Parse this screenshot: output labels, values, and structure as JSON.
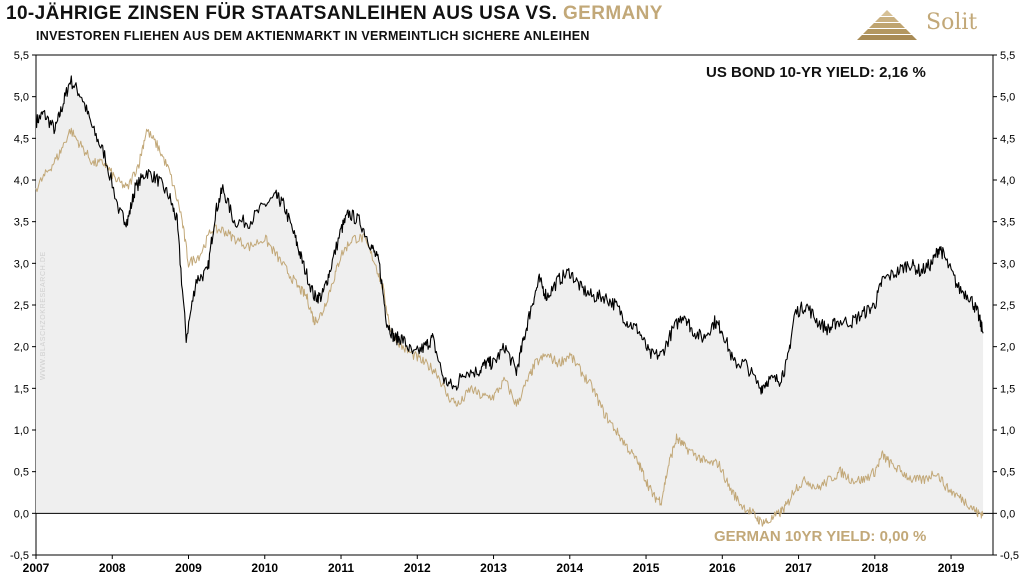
{
  "header": {
    "title_main": "10-JÄHRIGE ZINSEN FÜR STAATSANLEIHEN AUS USA  VS.",
    "title_accent": "GERMANY",
    "subtitle": "INVESTOREN  FLIEHEN  AUS  DEM  AKTIENMARKT IN VERMEINTLICH  SICHERE  ANLEIHEN"
  },
  "brand": {
    "name": "Solit",
    "icon": "pyramid-logo-icon",
    "color": "#c2a878"
  },
  "watermark": "WWW.BLASCHZOKRESEARCH.DE",
  "labels": {
    "us_yield": "US BOND 10-YR YIELD: 2,16 %",
    "de_yield": "GERMAN 10YR  YIELD: 0,00 %"
  },
  "colors": {
    "us": "#000000",
    "de": "#c2a878",
    "fill": "#efefef"
  },
  "chart_data": {
    "type": "line",
    "title": "10-JÄHRIGE ZINSEN FÜR STAATSANLEIHEN AUS USA VS. GERMANY",
    "xlabel": "",
    "ylabel": "",
    "ylim": [
      -0.5,
      5.5
    ],
    "xlim": [
      2007.0,
      2019.55
    ],
    "yticks": [
      "-0,5",
      "0,0",
      "0,5",
      "1,0",
      "1,5",
      "2,0",
      "2,5",
      "3,0",
      "3,5",
      "4,0",
      "4,5",
      "5,0",
      "5,5"
    ],
    "ytick_values": [
      -0.5,
      0,
      0.5,
      1,
      1.5,
      2,
      2.5,
      3,
      3.5,
      4,
      4.5,
      5,
      5.5
    ],
    "xticks": [
      "2007",
      "2008",
      "2009",
      "2010",
      "2011",
      "2012",
      "2013",
      "2014",
      "2015",
      "2016",
      "2017",
      "2018",
      "2019"
    ],
    "xtick_values": [
      2007,
      2008,
      2009,
      2010,
      2011,
      2012,
      2013,
      2014,
      2015,
      2016,
      2017,
      2018,
      2019
    ],
    "series": [
      {
        "name": "US BOND 10-YR YIELD",
        "color": "#000000",
        "x": [
          2007.0,
          2007.1,
          2007.25,
          2007.35,
          2007.45,
          2007.6,
          2007.75,
          2007.9,
          2008.1,
          2008.2,
          2008.3,
          2008.45,
          2008.6,
          2008.75,
          2008.85,
          2008.97,
          2009.1,
          2009.25,
          2009.35,
          2009.45,
          2009.6,
          2009.8,
          2010.0,
          2010.15,
          2010.25,
          2010.4,
          2010.5,
          2010.65,
          2010.75,
          2010.85,
          2011.0,
          2011.1,
          2011.25,
          2011.4,
          2011.5,
          2011.6,
          2011.7,
          2011.8,
          2011.95,
          2012.1,
          2012.2,
          2012.35,
          2012.5,
          2012.6,
          2012.8,
          2012.9,
          2013.0,
          2013.15,
          2013.3,
          2013.4,
          2013.5,
          2013.6,
          2013.7,
          2013.85,
          2014.0,
          2014.15,
          2014.3,
          2014.45,
          2014.6,
          2014.75,
          2014.9,
          2015.05,
          2015.2,
          2015.35,
          2015.5,
          2015.6,
          2015.75,
          2015.9,
          2016.0,
          2016.15,
          2016.3,
          2016.5,
          2016.6,
          2016.75,
          2016.85,
          2016.95,
          2017.1,
          2017.25,
          2017.4,
          2017.5,
          2017.7,
          2017.85,
          2018.0,
          2018.1,
          2018.3,
          2018.45,
          2018.6,
          2018.75,
          2018.85,
          2018.95,
          2019.1,
          2019.25,
          2019.35,
          2019.42
        ],
        "values": [
          4.7,
          4.8,
          4.6,
          4.9,
          5.2,
          5.0,
          4.6,
          4.3,
          3.6,
          3.5,
          3.9,
          4.1,
          4.0,
          3.8,
          3.5,
          2.1,
          2.8,
          2.9,
          3.6,
          3.9,
          3.5,
          3.5,
          3.7,
          3.8,
          3.7,
          3.3,
          3.0,
          2.6,
          2.6,
          2.9,
          3.4,
          3.6,
          3.5,
          3.2,
          3.0,
          2.3,
          2.1,
          2.1,
          1.9,
          2.0,
          2.1,
          1.6,
          1.5,
          1.7,
          1.7,
          1.8,
          1.8,
          2.0,
          1.7,
          2.1,
          2.5,
          2.8,
          2.6,
          2.8,
          2.9,
          2.7,
          2.6,
          2.6,
          2.5,
          2.3,
          2.2,
          1.9,
          1.9,
          2.2,
          2.4,
          2.2,
          2.1,
          2.3,
          2.2,
          1.8,
          1.8,
          1.5,
          1.6,
          1.6,
          1.8,
          2.4,
          2.5,
          2.3,
          2.2,
          2.3,
          2.3,
          2.4,
          2.5,
          2.8,
          2.9,
          3.0,
          2.9,
          3.0,
          3.2,
          3.0,
          2.7,
          2.6,
          2.4,
          2.16
        ]
      },
      {
        "name": "GERMAN 10YR YIELD",
        "color": "#c2a878",
        "x": [
          2007.0,
          2007.15,
          2007.3,
          2007.45,
          2007.6,
          2007.75,
          2007.9,
          2008.05,
          2008.2,
          2008.35,
          2008.45,
          2008.6,
          2008.75,
          2008.9,
          2009.0,
          2009.15,
          2009.3,
          2009.45,
          2009.6,
          2009.8,
          2010.0,
          2010.15,
          2010.3,
          2010.45,
          2010.55,
          2010.65,
          2010.75,
          2010.9,
          2011.0,
          2011.15,
          2011.3,
          2011.45,
          2011.55,
          2011.65,
          2011.8,
          2011.95,
          2012.1,
          2012.25,
          2012.4,
          2012.55,
          2012.7,
          2012.85,
          2013.0,
          2013.15,
          2013.3,
          2013.45,
          2013.55,
          2013.7,
          2013.85,
          2014.0,
          2014.15,
          2014.3,
          2014.45,
          2014.6,
          2014.75,
          2014.9,
          2015.0,
          2015.1,
          2015.2,
          2015.3,
          2015.4,
          2015.5,
          2015.65,
          2015.8,
          2015.95,
          2016.1,
          2016.25,
          2016.4,
          2016.5,
          2016.6,
          2016.75,
          2016.85,
          2016.95,
          2017.1,
          2017.25,
          2017.4,
          2017.55,
          2017.7,
          2017.85,
          2018.0,
          2018.1,
          2018.2,
          2018.35,
          2018.5,
          2018.65,
          2018.8,
          2018.95,
          2019.1,
          2019.25,
          2019.35,
          2019.42
        ],
        "values": [
          3.9,
          4.1,
          4.3,
          4.6,
          4.4,
          4.2,
          4.2,
          4.0,
          3.9,
          4.2,
          4.6,
          4.4,
          4.1,
          3.6,
          3.0,
          3.1,
          3.4,
          3.4,
          3.3,
          3.2,
          3.3,
          3.1,
          2.9,
          2.7,
          2.6,
          2.3,
          2.4,
          2.8,
          3.1,
          3.3,
          3.3,
          3.0,
          2.7,
          2.2,
          2.0,
          1.9,
          1.8,
          1.7,
          1.4,
          1.3,
          1.5,
          1.4,
          1.4,
          1.6,
          1.3,
          1.6,
          1.8,
          1.9,
          1.8,
          1.9,
          1.7,
          1.5,
          1.2,
          1.0,
          0.8,
          0.6,
          0.4,
          0.2,
          0.15,
          0.6,
          0.9,
          0.8,
          0.7,
          0.6,
          0.6,
          0.3,
          0.1,
          0.0,
          -0.1,
          -0.1,
          0.0,
          0.1,
          0.3,
          0.4,
          0.3,
          0.4,
          0.5,
          0.4,
          0.4,
          0.5,
          0.7,
          0.6,
          0.5,
          0.4,
          0.4,
          0.5,
          0.3,
          0.2,
          0.1,
          0.0,
          0.0
        ]
      }
    ]
  }
}
